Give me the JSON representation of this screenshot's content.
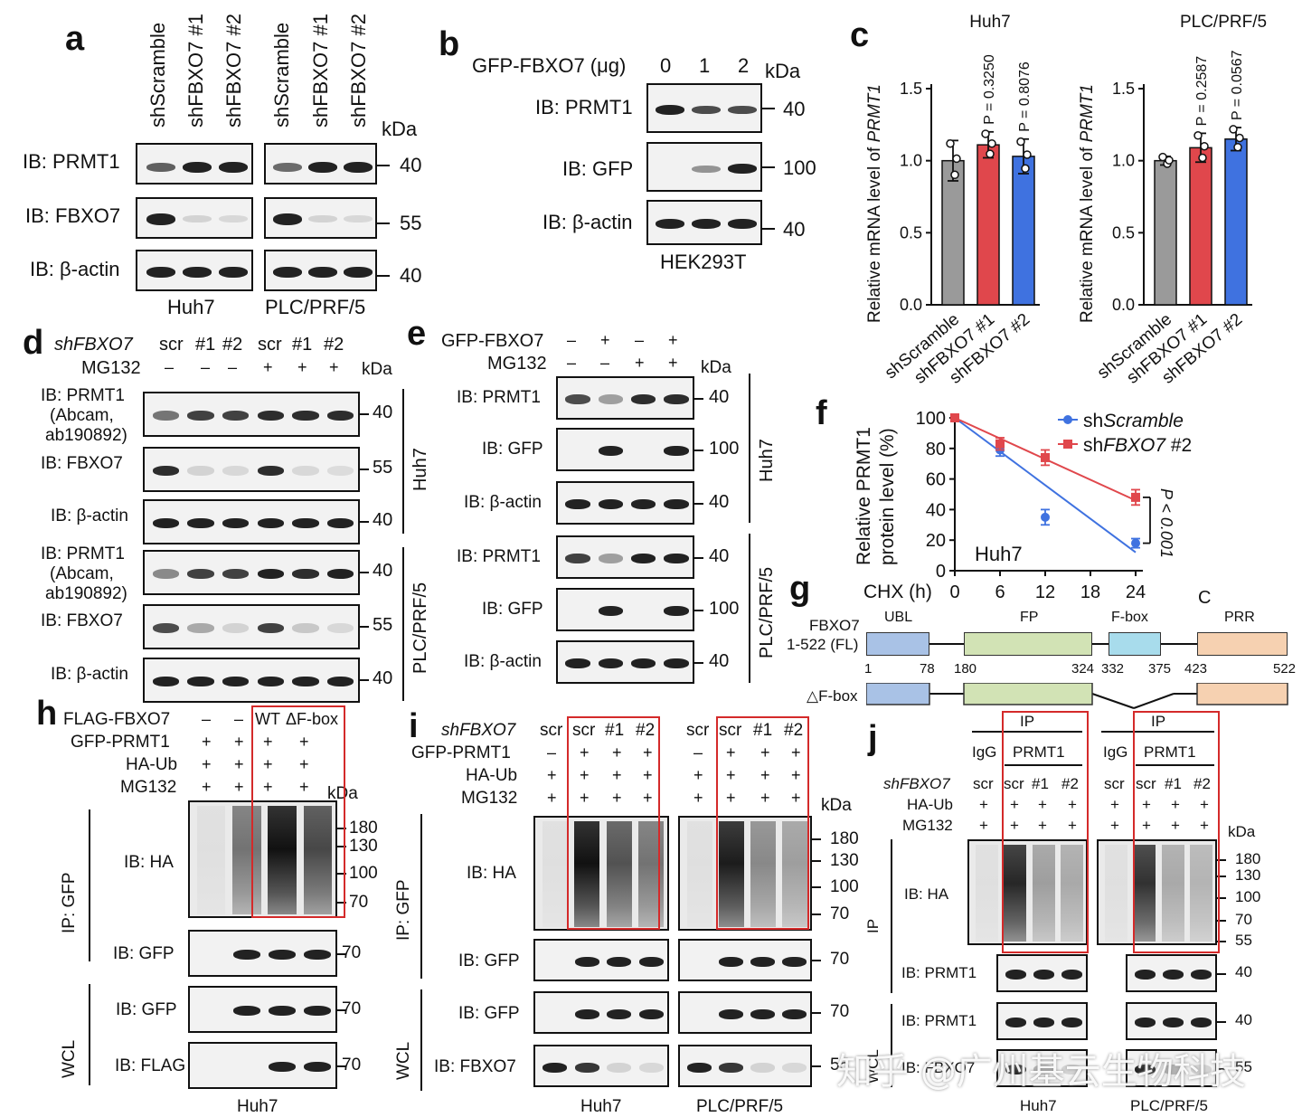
{
  "panel_letters": [
    "a",
    "b",
    "c",
    "d",
    "e",
    "f",
    "g",
    "h",
    "i",
    "j"
  ],
  "a": {
    "lanes": [
      "shScramble",
      "shFBXO7 #1",
      "shFBXO7 #2",
      "shScramble",
      "shFBXO7 #1",
      "shFBXO7 #2"
    ],
    "kda": "kDa",
    "rows": [
      {
        "label": "IB: PRMT1",
        "mw": "40"
      },
      {
        "label": "IB: FBXO7",
        "mw": "55"
      },
      {
        "label": "IB: β-actin",
        "mw": "40"
      }
    ],
    "cells": [
      "Huh7",
      "PLC/PRF/5"
    ]
  },
  "b": {
    "header": "GFP-FBXO7 (μg)",
    "doses": [
      "0",
      "1",
      "2"
    ],
    "kda": "kDa",
    "rows": [
      {
        "label": "IB: PRMT1",
        "mw": "40"
      },
      {
        "label": "IB: GFP",
        "mw": "100"
      },
      {
        "label": "IB: β-actin",
        "mw": "40"
      }
    ],
    "cell": "HEK293T"
  },
  "c": {
    "ylabel": "Relative mRNA level of PRMT1",
    "yticks": [
      "1.5",
      "1.0",
      "0.5",
      "0.0"
    ],
    "categories": [
      "shScramble",
      "shFBXO7 #1",
      "shFBXO7 #2"
    ]
  },
  "chart_data": [
    {
      "type": "bar",
      "title": "Huh7",
      "categories": [
        "shScramble",
        "shFBXO7 #1",
        "shFBXO7 #2"
      ],
      "values": [
        1.0,
        1.11,
        1.03
      ],
      "errors": [
        0.14,
        0.09,
        0.12
      ],
      "pvalues": [
        "",
        "P = 0.3250",
        "P = 0.8076"
      ],
      "ylabel": "Relative mRNA level of PRMT1",
      "ylim": [
        0,
        1.5
      ],
      "colors": [
        "#9a9a9a",
        "#e0474c",
        "#3f72e0"
      ]
    },
    {
      "type": "bar",
      "title": "PLC/PRF/5",
      "categories": [
        "shScramble",
        "shFBXO7 #1",
        "shFBXO7 #2"
      ],
      "values": [
        1.0,
        1.09,
        1.15
      ],
      "errors": [
        0.03,
        0.1,
        0.08
      ],
      "pvalues": [
        "",
        "P = 0.2587",
        "P = 0.0567"
      ],
      "ylabel": "Relative mRNA level of PRMT1",
      "ylim": [
        0,
        1.5
      ],
      "colors": [
        "#9a9a9a",
        "#e0474c",
        "#3f72e0"
      ]
    },
    {
      "type": "line",
      "title": "",
      "annotation": "Huh7",
      "xlabel": "CHX (h)",
      "ylabel": "Relative PRMT1 protein level (%)",
      "x": [
        0,
        6,
        12,
        24
      ],
      "xticks": [
        "0",
        "6",
        "12",
        "18",
        "24"
      ],
      "yticks": [
        "100",
        "80",
        "60",
        "40",
        "20",
        "0"
      ],
      "xlim": [
        0,
        24
      ],
      "ylim": [
        0,
        100
      ],
      "series": [
        {
          "name": "shScramble",
          "values": [
            100,
            79,
            35,
            18
          ],
          "errors": [
            0,
            4,
            5,
            3
          ],
          "color": "#3f72e0",
          "marker": "circle"
        },
        {
          "name": "shFBXO7 #2",
          "values": [
            100,
            83,
            74,
            48
          ],
          "errors": [
            0,
            4,
            5,
            5
          ],
          "color": "#e0474c",
          "marker": "square"
        }
      ],
      "pvalue": "P < 0.001"
    }
  ],
  "d": {
    "sh_label": "shFBXO7",
    "lanes": [
      "scr",
      "#1",
      "#2",
      "scr",
      "#1",
      "#2"
    ],
    "mg_label": "MG132",
    "mg": [
      "–",
      "–",
      "–",
      "+",
      "+",
      "+"
    ],
    "kda": "kDa",
    "rows": [
      {
        "label": "IB: PRMT1",
        "sub": "(Abcam,",
        "sub2": "ab190892)",
        "mw": "40"
      },
      {
        "label": "IB:  FBXO7",
        "mw": "55"
      },
      {
        "label": "IB: β-actin",
        "mw": "40"
      },
      {
        "label": "IB: PRMT1",
        "sub": "(Abcam,",
        "sub2": "ab190892)",
        "mw": "40"
      },
      {
        "label": "IB:  FBXO7",
        "mw": "55"
      },
      {
        "label": "IB: β-actin",
        "mw": "40"
      }
    ],
    "cells": [
      "Huh7",
      "PLC/PRF/5"
    ]
  },
  "e": {
    "gfp_label": "GFP-FBXO7",
    "gfp": [
      "–",
      "+",
      "–",
      "+"
    ],
    "mg_label": "MG132",
    "mg": [
      "–",
      "–",
      "+",
      "+"
    ],
    "kda": "kDa",
    "rows": [
      {
        "label": "IB: PRMT1",
        "mw": "40"
      },
      {
        "label": "IB: GFP",
        "mw": "100"
      },
      {
        "label": "IB: β-actin",
        "mw": "40"
      },
      {
        "label": "IB: PRMT1",
        "mw": "40"
      },
      {
        "label": "IB: GFP",
        "mw": "100"
      },
      {
        "label": "IB: β-actin",
        "mw": "40"
      }
    ],
    "cells": [
      "Huh7",
      "PLC/PRF/5"
    ]
  },
  "g": {
    "name": "FBXO7",
    "name2": "1-522 (FL)",
    "deletion": "△F-box",
    "domains": [
      "UBL",
      "FP",
      "F-box",
      "PRR"
    ],
    "c_label": "C",
    "positions": [
      "1",
      "78",
      "180",
      "324",
      "332",
      "375",
      "423",
      "522"
    ]
  },
  "h": {
    "rows_top": [
      {
        "label": "FLAG-FBXO7",
        "vals": [
          "–",
          "–",
          "WT",
          "ΔF-box"
        ]
      },
      {
        "label": "GFP-PRMT1",
        "vals": [
          "+",
          "+",
          "+",
          "+"
        ]
      },
      {
        "label": "HA-Ub",
        "vals": [
          "+",
          "+",
          "+",
          "+"
        ]
      },
      {
        "label": "MG132",
        "vals": [
          "+",
          "+",
          "+",
          "+"
        ]
      }
    ],
    "kda": "kDa",
    "ip": "IP: GFP",
    "wcl": "WCL",
    "ha": "IB: HA",
    "ha_mw": [
      "180",
      "130",
      "100",
      "70"
    ],
    "blots": [
      {
        "label": "IB: GFP",
        "mw": "70"
      },
      {
        "label": "IB: GFP",
        "mw": "70"
      },
      {
        "label": "IB: FLAG",
        "mw": "70"
      }
    ],
    "cell": "Huh7"
  },
  "i": {
    "sh_label": "shFBXO7",
    "lanes": [
      "scr",
      "scr",
      "#1",
      "#2",
      "scr",
      "scr",
      "#1",
      "#2"
    ],
    "rows_top": [
      {
        "label": "GFP-PRMT1",
        "vals": [
          "–",
          "+",
          "+",
          "+",
          "–",
          "+",
          "+",
          "+"
        ]
      },
      {
        "label": "HA-Ub",
        "vals": [
          "+",
          "+",
          "+",
          "+",
          "+",
          "+",
          "+",
          "+"
        ]
      },
      {
        "label": "MG132",
        "vals": [
          "+",
          "+",
          "+",
          "+",
          "+",
          "+",
          "+",
          "+"
        ]
      }
    ],
    "kda": "kDa",
    "ip": "IP: GFP",
    "wcl": "WCL",
    "ha": "IB: HA",
    "ha_mw": [
      "180",
      "130",
      "100",
      "70"
    ],
    "blots": [
      {
        "label": "IB: GFP",
        "mw": "70"
      },
      {
        "label": "IB: GFP",
        "mw": "70"
      },
      {
        "label": "IB: FBXO7",
        "mw": "55"
      }
    ],
    "cells": [
      "Huh7",
      "PLC/PRF/5"
    ]
  },
  "j": {
    "ip_header": "IP",
    "igg": "IgG",
    "prmt1": "PRMT1",
    "sh_label": "shFBXO7",
    "lanes": [
      "scr",
      "scr",
      "#1",
      "#2",
      "scr",
      "scr",
      "#1",
      "#2"
    ],
    "rows_top": [
      {
        "label": "HA-Ub",
        "vals": [
          "+",
          "+",
          "+",
          "+",
          "+",
          "+",
          "+",
          "+"
        ]
      },
      {
        "label": "MG132",
        "vals": [
          "+",
          "+",
          "+",
          "+",
          "+",
          "+",
          "+",
          "+"
        ]
      }
    ],
    "kda": "kDa",
    "ip": "IP",
    "wcl": "WCL",
    "ha": "IB: HA",
    "ha_mw": [
      "180",
      "130",
      "100",
      "70",
      "55"
    ],
    "blots": [
      {
        "label": "IB: PRMT1",
        "mw": "40"
      },
      {
        "label": "IB: PRMT1",
        "mw": "40"
      },
      {
        "label": "IB: FBXO7",
        "mw": "55"
      }
    ],
    "cells": [
      "Huh7",
      "PLC/PRF/5"
    ]
  },
  "watermark": "知乎 @广州基云生物科技"
}
